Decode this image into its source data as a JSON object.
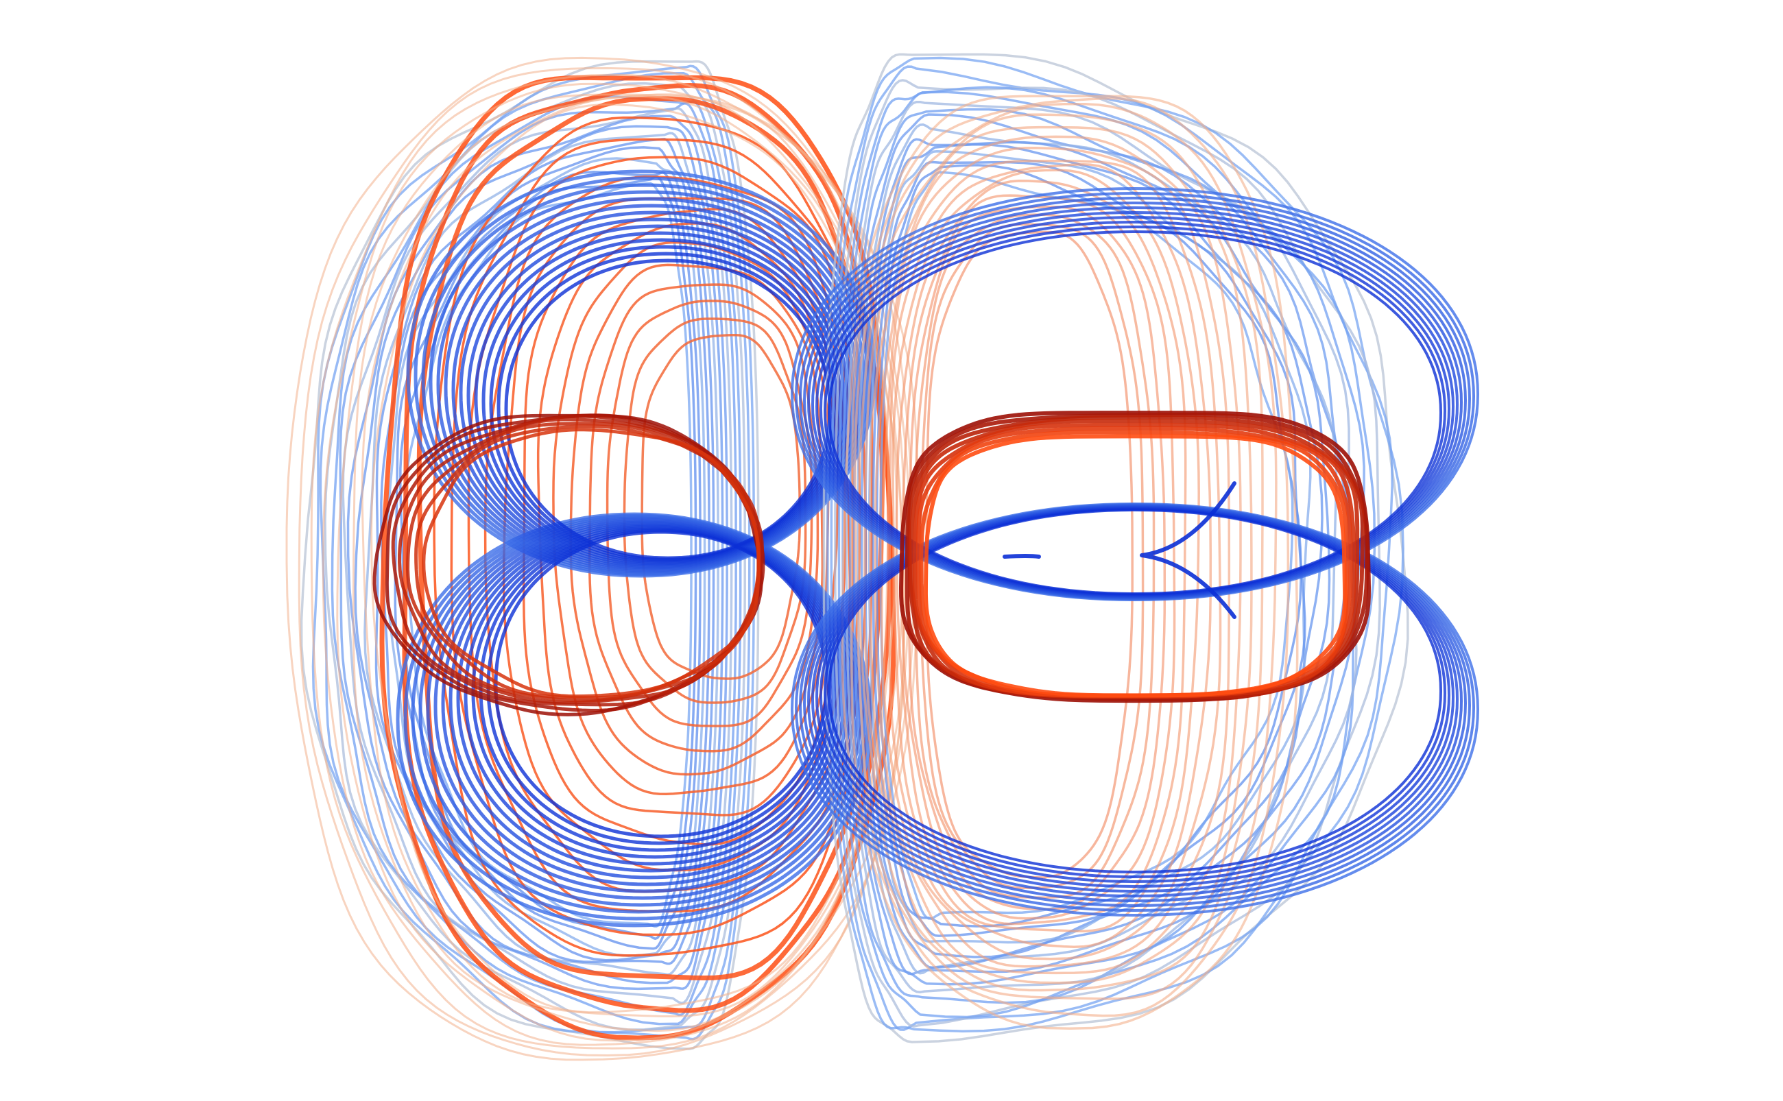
{
  "figure": {
    "description_free": true,
    "palette": {
      "blue_light": "#7aa7f2",
      "blue_mid": "#3d6fe8",
      "blue_dark": "#0b2fd6",
      "grey_light": "#b9c4d6",
      "orange_light": "#f3b08c",
      "orange_mid": "#f26a3a",
      "orange_bright": "#ff4d12",
      "red_dark": "#9c0f06"
    },
    "panels": [
      {
        "name": "left-lobe-pattern",
        "blue_ring_pair": true,
        "red_ring_count": 1
      },
      {
        "name": "right-lobe-pattern",
        "blue_ring_pair": true,
        "red_ring_count": 1
      }
    ]
  }
}
